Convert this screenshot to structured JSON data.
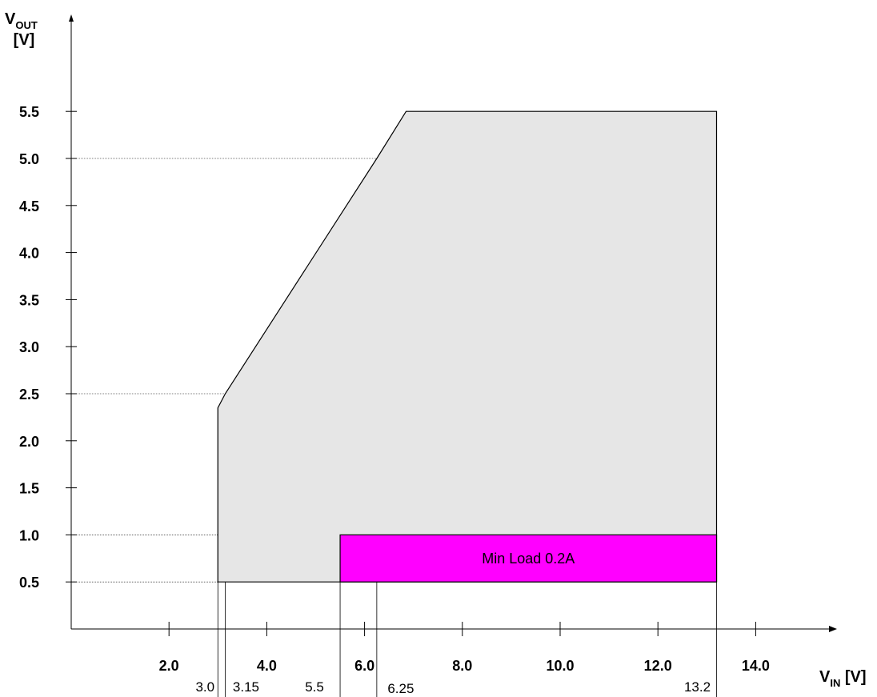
{
  "chart_data": {
    "type": "area",
    "xlabel": {
      "main": "V",
      "sub": "IN",
      "unit": " [V]"
    },
    "ylabel": {
      "main": "V",
      "sub": "OUT",
      "unit": "[V]"
    },
    "xlim": [
      0,
      15.5
    ],
    "ylim": [
      0,
      6.1
    ],
    "x_ticks": [
      {
        "value": 2.0,
        "label": "2.0"
      },
      {
        "value": 4.0,
        "label": "4.0"
      },
      {
        "value": 6.0,
        "label": "6.0"
      },
      {
        "value": 8.0,
        "label": "8.0"
      },
      {
        "value": 10.0,
        "label": "10.0"
      },
      {
        "value": 12.0,
        "label": "12.0"
      },
      {
        "value": 14.0,
        "label": "14.0"
      }
    ],
    "y_ticks": [
      {
        "value": 0.5,
        "label": "0.5"
      },
      {
        "value": 1.0,
        "label": "1.0"
      },
      {
        "value": 1.5,
        "label": "1.5"
      },
      {
        "value": 2.0,
        "label": "2.0"
      },
      {
        "value": 2.5,
        "label": "2.5"
      },
      {
        "value": 3.0,
        "label": "3.0"
      },
      {
        "value": 3.5,
        "label": "3.5"
      },
      {
        "value": 4.0,
        "label": "4.0"
      },
      {
        "value": 4.5,
        "label": "4.5"
      },
      {
        "value": 5.0,
        "label": "5.0"
      },
      {
        "value": 5.5,
        "label": "5.5"
      }
    ],
    "operating_region": {
      "color": "#e6e6e6",
      "points": [
        [
          3.0,
          0.5
        ],
        [
          3.0,
          2.35
        ],
        [
          3.15,
          2.5
        ],
        [
          6.25,
          5.0
        ],
        [
          6.85,
          5.5
        ],
        [
          13.2,
          5.5
        ],
        [
          13.2,
          0.5
        ]
      ]
    },
    "min_load_region": {
      "label": "Min Load 0.2A",
      "color": "#ff00ff",
      "x": [
        5.5,
        13.2
      ],
      "y": [
        0.5,
        1.0
      ]
    },
    "x_markers": [
      {
        "value": 3.0,
        "label": "3.0",
        "top": 2.35
      },
      {
        "value": 3.15,
        "label": "3.15",
        "top": 2.5
      },
      {
        "value": 5.5,
        "label": "5.5",
        "top": 1.0
      },
      {
        "value": 6.25,
        "label": "6.25",
        "top": 5.0
      },
      {
        "value": 13.2,
        "label": "13.2",
        "top": 0.5
      }
    ],
    "y_markers": [
      {
        "value": 5.0,
        "x_end": 6.25
      },
      {
        "value": 2.5,
        "x_end": 3.15
      },
      {
        "value": 1.0,
        "x_end": 5.5
      },
      {
        "value": 0.5,
        "x_end": 3.0
      }
    ],
    "colors": {
      "axis": "#000000",
      "outline": "#000000"
    }
  }
}
